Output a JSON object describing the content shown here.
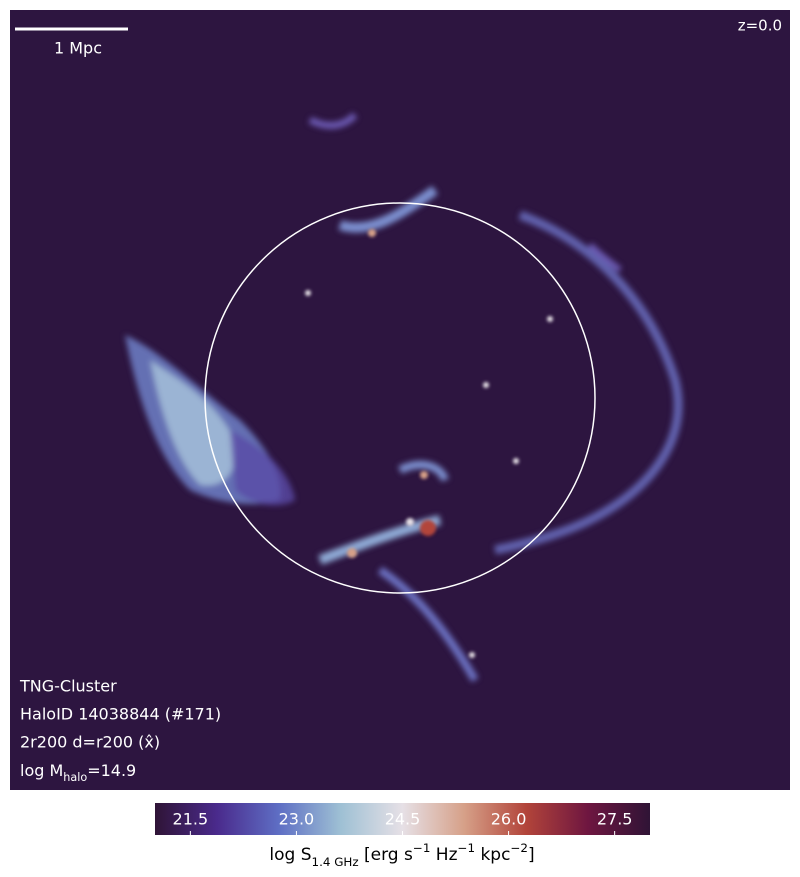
{
  "chart_data": {
    "type": "image",
    "scale_bar_label": "1 Mpc",
    "redshift_label": "z=0.0",
    "info_lines": [
      "TNG-Cluster",
      "HaloID 14038844 (#171)",
      "2r200 d=r200 (x̂)"
    ],
    "mass_label": [
      "log M",
      "halo",
      "=14.9"
    ],
    "colorbar": {
      "label": [
        "log S",
        "1.4 GHz",
        " [erg s",
        "−1",
        " Hz",
        "−1",
        " kpc",
        "−2",
        "]"
      ],
      "lim": [
        21,
        28
      ],
      "ticks": [
        21.5,
        {
          "value": 23,
          "label": "23.0"
        },
        24.5,
        {
          "value": 26,
          "label": "26.0"
        },
        27.5
      ],
      "colormap": [
        "#2f1436",
        "#4a2a8c",
        "#5e6ec4",
        "#9ec0d4",
        "#e6e0e6",
        "#d6a088",
        "#b2443a",
        "#6e1640",
        "#2f1436"
      ]
    }
  }
}
